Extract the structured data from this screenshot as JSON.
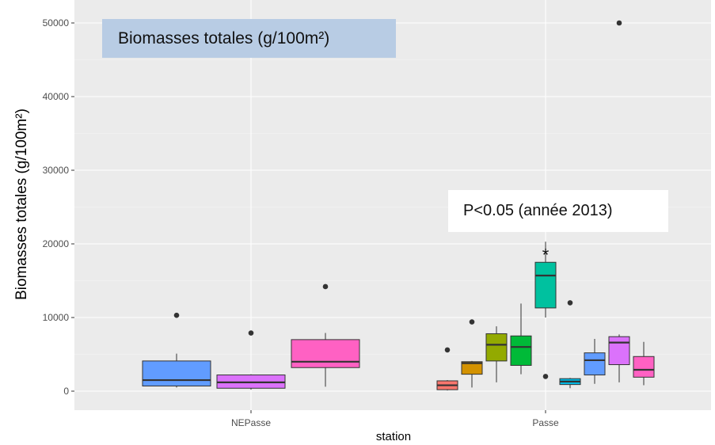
{
  "chart_data": {
    "type": "boxplot",
    "title": "Biomasses totales (g/100m²)",
    "annotation": "P<0.05 (année 2013)",
    "significance_marker": "*",
    "xlabel": "station",
    "ylabel": "Biomasses totales (g/100m²)",
    "ylim": [
      -2500,
      52500
    ],
    "yticks": [
      0,
      10000,
      20000,
      30000,
      40000,
      50000
    ],
    "yticklabels": [
      "0",
      "10000",
      "20000",
      "30000",
      "40000",
      "50000"
    ],
    "categories": [
      "NEPasse",
      "Passe"
    ],
    "grid": true,
    "background": "#ebebeb",
    "groups": [
      {
        "station": "NEPasse",
        "color": "#619cff",
        "whisker_low": 500,
        "q1": 700,
        "median": 1500,
        "q3": 4100,
        "whisker_high": 5100,
        "outliers": [
          10300
        ]
      },
      {
        "station": "NEPasse",
        "color": "#db72fb",
        "whisker_low": 200,
        "q1": 400,
        "median": 1200,
        "q3": 2200,
        "whisker_high": 2300,
        "outliers": [
          7900
        ]
      },
      {
        "station": "NEPasse",
        "color": "#ff61c3",
        "whisker_low": 600,
        "q1": 3200,
        "median": 4000,
        "q3": 7000,
        "whisker_high": 7900,
        "outliers": [
          14200
        ]
      },
      {
        "station": "Passe",
        "color": "#f8766d",
        "whisker_low": 100,
        "q1": 200,
        "median": 800,
        "q3": 1400,
        "whisker_high": 1500,
        "outliers": [
          5600
        ]
      },
      {
        "station": "Passe",
        "color": "#d39200",
        "whisker_low": 500,
        "q1": 2300,
        "median": 3800,
        "q3": 4000,
        "whisker_high": 4100,
        "outliers": [
          9400
        ]
      },
      {
        "station": "Passe",
        "color": "#93aa00",
        "whisker_low": 1200,
        "q1": 4100,
        "median": 6300,
        "q3": 7800,
        "whisker_high": 8800,
        "outliers": []
      },
      {
        "station": "Passe",
        "color": "#00ba38",
        "whisker_low": 2300,
        "q1": 3500,
        "median": 6000,
        "q3": 7500,
        "whisker_high": 11900,
        "outliers": []
      },
      {
        "station": "Passe",
        "color": "#00c19f",
        "whisker_low": 10000,
        "q1": 11300,
        "median": 15700,
        "q3": 17500,
        "whisker_high": 20300,
        "outliers": [
          2000
        ],
        "significant": true
      },
      {
        "station": "Passe",
        "color": "#00b9e3",
        "whisker_low": 400,
        "q1": 900,
        "median": 1300,
        "q3": 1700,
        "whisker_high": 1800,
        "outliers": [
          12000
        ]
      },
      {
        "station": "Passe",
        "color": "#619cff",
        "whisker_low": 1000,
        "q1": 2200,
        "median": 4200,
        "q3": 5200,
        "whisker_high": 7100,
        "outliers": []
      },
      {
        "station": "Passe",
        "color": "#db72fb",
        "whisker_low": 1200,
        "q1": 3600,
        "median": 6600,
        "q3": 7400,
        "whisker_high": 7700,
        "outliers": [
          50000
        ]
      },
      {
        "station": "Passe",
        "color": "#ff61c3",
        "whisker_low": 800,
        "q1": 1900,
        "median": 2900,
        "q3": 4700,
        "whisker_high": 6700,
        "outliers": []
      }
    ]
  }
}
